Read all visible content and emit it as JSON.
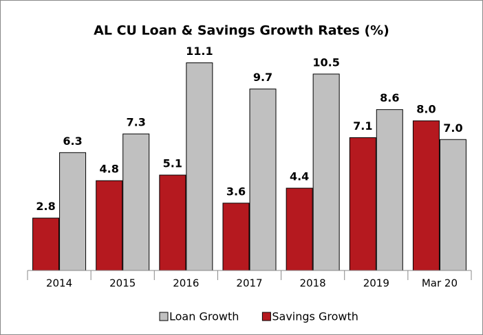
{
  "chart_data": {
    "type": "bar",
    "title": "AL CU Loan & Savings Growth Rates (%)",
    "categories": [
      "2014",
      "2015",
      "2016",
      "2017",
      "2018",
      "2019",
      "Mar 20"
    ],
    "series": [
      {
        "name": "Savings Growth",
        "color": "#b5191f",
        "values": [
          2.8,
          4.8,
          5.1,
          3.6,
          4.4,
          7.1,
          8.0
        ],
        "value_labels": [
          "2.8",
          "4.8",
          "5.1",
          "3.6",
          "4.4",
          "7.1",
          "8.0"
        ]
      },
      {
        "name": "Loan Growth",
        "color": "#c0c0c0",
        "values": [
          6.3,
          7.3,
          11.1,
          9.7,
          10.5,
          8.6,
          7.0
        ],
        "value_labels": [
          "6.3",
          "7.3",
          "11.1",
          "9.7",
          "10.5",
          "8.6",
          "7.0"
        ]
      }
    ],
    "ylim": [
      0,
      12
    ]
  }
}
